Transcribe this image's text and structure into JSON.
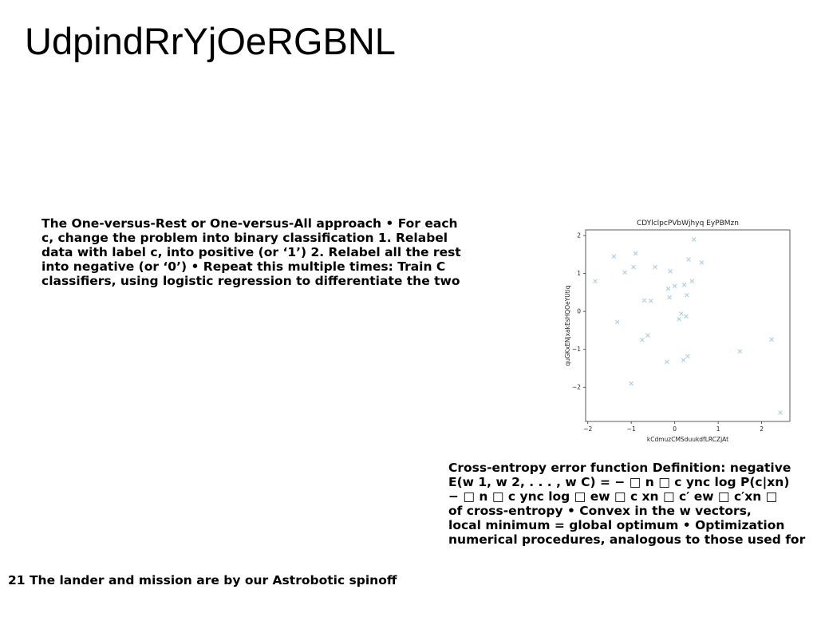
{
  "slide": {
    "title": "UdpindRrYjOeRGBNL",
    "block1": {
      "lines": [
        "The One-versus-Rest or One-versus-All approach • For each",
        "c, change the problem into binary classification 1. Relabel",
        "data with label c, into positive (or ‘1’) 2. Relabel all the rest",
        "into negative (or ‘0’) • Repeat this multiple times: Train C",
        "classifiers, using logistic regression to differentiate the two"
      ]
    },
    "block2": {
      "lines": [
        "Cross-entropy error function Definition: negative",
        "E(w 1, w 2, . . . , w C) = − □ n □ c ync log P(c|xn)",
        "− □ n □ c ync log □ ew □ c xn □ c′ ew □ c′xn □",
        "of cross-entropy • Convex in the w vectors,",
        "local minimum = global optimum • Optimization",
        "numerical procedures, analogous to those used for"
      ]
    },
    "footer": "21 The lander and mission are by our Astrobotic spinoff"
  },
  "chart_data": {
    "type": "scatter",
    "title": "CDYlclpcPVbWjhyq EyPBMzn",
    "xlabel": "kCdmuzCMSduukdfLRCZjAt",
    "ylabel": "quGKxENjxakEsHQOeYUtiq",
    "xlim": [
      -2.05,
      2.65
    ],
    "ylim": [
      -2.9,
      2.15
    ],
    "xticks": [
      -2,
      -1,
      0,
      1,
      2
    ],
    "yticks": [
      -2,
      -1,
      0,
      1,
      2
    ],
    "xtick_labels": [
      "−2",
      "−1",
      "0",
      "1",
      "2"
    ],
    "ytick_labels": [
      "−2",
      "−1",
      "0",
      "1",
      "2"
    ],
    "marker": "x",
    "color": "#a9cde3",
    "grid": false,
    "points": [
      [
        -1.83,
        0.8
      ],
      [
        -1.4,
        1.45
      ],
      [
        -1.32,
        -0.28
      ],
      [
        -1.15,
        1.03
      ],
      [
        -1.0,
        -1.9
      ],
      [
        -0.95,
        1.17
      ],
      [
        -0.9,
        1.53
      ],
      [
        -0.75,
        -0.75
      ],
      [
        -0.7,
        0.29
      ],
      [
        -0.62,
        -0.63
      ],
      [
        -0.55,
        0.28
      ],
      [
        -0.45,
        1.17
      ],
      [
        -0.18,
        -1.33
      ],
      [
        -0.15,
        0.6
      ],
      [
        -0.12,
        0.37
      ],
      [
        -0.1,
        1.06
      ],
      [
        0.0,
        0.67
      ],
      [
        0.1,
        -0.2
      ],
      [
        0.15,
        -0.06
      ],
      [
        0.2,
        -1.28
      ],
      [
        0.22,
        0.7
      ],
      [
        0.26,
        -0.13
      ],
      [
        0.28,
        0.43
      ],
      [
        0.3,
        -1.18
      ],
      [
        0.32,
        1.37
      ],
      [
        0.4,
        0.8
      ],
      [
        0.44,
        1.9
      ],
      [
        0.62,
        1.29
      ],
      [
        1.5,
        -1.05
      ],
      [
        2.23,
        -0.74
      ],
      [
        2.43,
        -2.67
      ]
    ]
  }
}
